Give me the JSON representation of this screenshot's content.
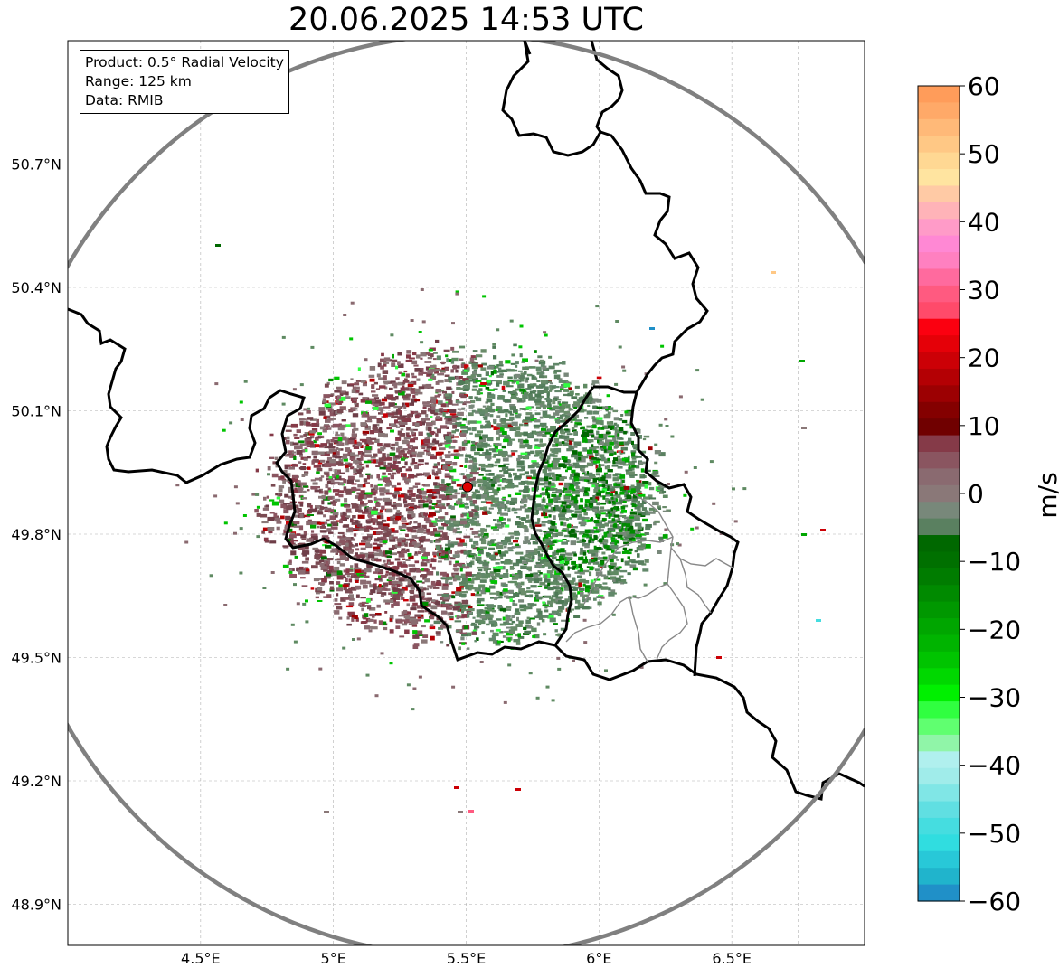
{
  "title": "20.06.2025 14:53 UTC",
  "info_box": {
    "product": "Product: 0.5° Radial Velocity",
    "range": "Range: 125 km",
    "data": "Data: RMIB"
  },
  "map": {
    "lon_range": [
      4.0,
      7.0
    ],
    "lat_range": [
      48.8,
      51.0
    ],
    "x_ticks": [
      "4.5°E",
      "5°E",
      "5.5°E",
      "6°E",
      "6.5°E"
    ],
    "y_ticks": [
      "50.7°N",
      "50.4°N",
      "50.1°N",
      "49.8°N",
      "49.5°N",
      "49.2°N",
      "48.9°N"
    ],
    "gridlines": true,
    "radar_site": {
      "lon": 5.505,
      "lat": 49.915
    },
    "range_ring_color": "#808080",
    "radar_marker_color": "#e00000"
  },
  "colorbar": {
    "label": "m/s",
    "min": -60,
    "max": 60,
    "ticks": [
      "60",
      "50",
      "40",
      "30",
      "20",
      "10",
      "0",
      "−10",
      "−20",
      "−30",
      "−40",
      "−50",
      "−60"
    ],
    "colors_top_to_bottom": [
      "#ff9c5a",
      "#ffa968",
      "#ffb978",
      "#ffc885",
      "#ffd893",
      "#ffe4a0",
      "#ffcaa5",
      "#ffb3b8",
      "#ff9bc8",
      "#ff88d4",
      "#ff80c0",
      "#ff6a9e",
      "#ff5a80",
      "#ff4a6a",
      "#fb0010",
      "#e50008",
      "#cc0006",
      "#b40004",
      "#9c0002",
      "#840000",
      "#700000",
      "#853a48",
      "#8a5560",
      "#8a6a70",
      "#8a7878",
      "#78887a",
      "#5a8060",
      "#006800",
      "#007000",
      "#007c00",
      "#008a00",
      "#009800",
      "#00a600",
      "#00b400",
      "#00c400",
      "#00d800",
      "#00f000",
      "#30ff40",
      "#60ff70",
      "#90f5a8",
      "#b0f0ee",
      "#a0ecea",
      "#80e6e6",
      "#60dfe2",
      "#45dde0",
      "#30dde0",
      "#28c8d8",
      "#20b4cc",
      "#2090c8"
    ]
  }
}
